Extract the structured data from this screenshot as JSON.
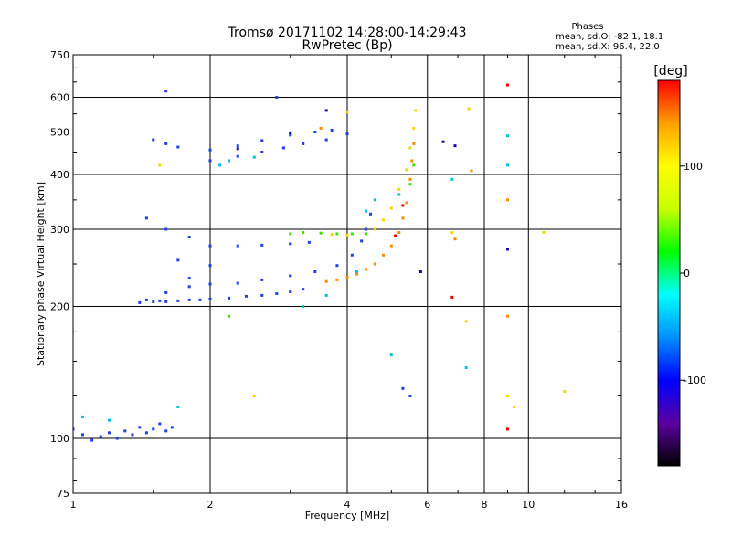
{
  "chart_data": {
    "type": "scatter",
    "title": "Tromsø 20171102 14:28:00-14:29:43",
    "subtitle": "RwPretec (Bp)",
    "xlabel": "Frequency [MHz]",
    "ylabel": "Stationary phase Virtual Height [km]",
    "x_scale": "log",
    "y_scale": "log",
    "xlim": [
      1,
      16
    ],
    "ylim": [
      75,
      750
    ],
    "x_ticks": [
      1,
      2,
      4,
      6,
      8,
      10,
      16
    ],
    "y_ticks": [
      75,
      100,
      200,
      300,
      400,
      500,
      600,
      750
    ],
    "grid": true,
    "annotation": {
      "heading": "Phases",
      "line1": "mean, sd,O: -82.1, 18.1",
      "line2": "mean, sd,X:  96.4, 22.0"
    },
    "colorbar": {
      "label": "[deg]",
      "range": [
        -180,
        180
      ],
      "ticks": [
        100,
        0,
        -100
      ],
      "tick_labels": [
        "100",
        "0",
        "-100"
      ],
      "stops": [
        "#000000",
        "#5a00a0",
        "#0000ff",
        "#0090ff",
        "#00ffff",
        "#00ff00",
        "#c8ff00",
        "#ffff00",
        "#ffa000",
        "#ff0000"
      ]
    },
    "series": [
      {
        "color": "#2040e0",
        "points": [
          [
            1.0,
            105
          ],
          [
            1.05,
            102
          ],
          [
            1.1,
            99
          ],
          [
            1.15,
            101
          ],
          [
            1.2,
            103
          ],
          [
            1.25,
            100
          ],
          [
            1.3,
            104
          ],
          [
            1.35,
            102
          ],
          [
            1.4,
            106
          ],
          [
            1.45,
            103
          ],
          [
            1.5,
            105
          ],
          [
            1.55,
            108
          ],
          [
            1.6,
            104
          ],
          [
            1.65,
            106
          ],
          [
            1.4,
            204
          ],
          [
            1.45,
            207
          ],
          [
            1.5,
            205
          ],
          [
            1.55,
            206
          ],
          [
            1.6,
            205
          ],
          [
            1.7,
            206
          ],
          [
            1.8,
            207
          ],
          [
            1.9,
            207
          ],
          [
            2.0,
            208
          ],
          [
            2.2,
            209
          ],
          [
            2.4,
            211
          ],
          [
            2.6,
            212
          ],
          [
            2.8,
            214
          ],
          [
            3.0,
            216
          ],
          [
            3.2,
            219
          ],
          [
            1.6,
            215
          ],
          [
            1.8,
            222
          ],
          [
            2.0,
            225
          ],
          [
            2.3,
            226
          ],
          [
            2.6,
            230
          ],
          [
            3.0,
            235
          ],
          [
            3.4,
            240
          ],
          [
            3.8,
            248
          ],
          [
            4.1,
            262
          ],
          [
            4.3,
            282
          ],
          [
            4.4,
            300
          ],
          [
            4.5,
            325
          ],
          [
            1.45,
            318
          ],
          [
            1.6,
            300
          ],
          [
            1.8,
            288
          ],
          [
            2.0,
            275
          ],
          [
            2.3,
            275
          ],
          [
            2.6,
            276
          ],
          [
            3.0,
            278
          ],
          [
            3.3,
            280
          ],
          [
            1.5,
            480
          ],
          [
            1.6,
            470
          ],
          [
            1.7,
            462
          ],
          [
            2.0,
            455
          ],
          [
            2.3,
            465
          ],
          [
            2.6,
            478
          ],
          [
            3.0,
            492
          ],
          [
            3.4,
            500
          ],
          [
            3.7,
            505
          ],
          [
            2.0,
            430
          ],
          [
            2.3,
            440
          ],
          [
            2.6,
            450
          ],
          [
            2.9,
            460
          ],
          [
            3.2,
            470
          ],
          [
            3.6,
            480
          ],
          [
            4.0,
            495
          ],
          [
            1.7,
            255
          ],
          [
            2.0,
            248
          ],
          [
            1.8,
            232
          ],
          [
            1.6,
            620
          ],
          [
            2.8,
            600
          ],
          [
            5.3,
            130
          ],
          [
            5.5,
            125
          ]
        ]
      },
      {
        "color": "#00c0e0",
        "points": [
          [
            1.05,
            112
          ],
          [
            1.2,
            110
          ],
          [
            1.7,
            118
          ],
          [
            2.1,
            420
          ],
          [
            2.2,
            430
          ],
          [
            2.5,
            438
          ],
          [
            3.2,
            200
          ],
          [
            3.6,
            212
          ],
          [
            4.2,
            240
          ],
          [
            4.4,
            330
          ],
          [
            4.6,
            350
          ],
          [
            5.0,
            155
          ],
          [
            5.2,
            360
          ],
          [
            6.8,
            390
          ],
          [
            7.3,
            145
          ],
          [
            9.0,
            420
          ],
          [
            9.0,
            490
          ]
        ]
      },
      {
        "color": "#40e000",
        "points": [
          [
            2.2,
            190
          ],
          [
            3.0,
            293
          ],
          [
            3.2,
            295
          ],
          [
            3.5,
            294
          ],
          [
            3.8,
            293
          ],
          [
            4.1,
            293
          ],
          [
            4.4,
            293
          ],
          [
            5.5,
            380
          ],
          [
            5.6,
            420
          ]
        ]
      },
      {
        "color": "#f0d800",
        "points": [
          [
            3.7,
            292
          ],
          [
            4.0,
            291
          ],
          [
            4.6,
            300
          ],
          [
            4.8,
            315
          ],
          [
            5.0,
            335
          ],
          [
            5.2,
            370
          ],
          [
            5.4,
            410
          ],
          [
            5.5,
            460
          ],
          [
            5.6,
            510
          ],
          [
            5.65,
            560
          ],
          [
            4.0,
            555
          ],
          [
            6.8,
            295
          ],
          [
            7.3,
            185
          ],
          [
            7.4,
            565
          ],
          [
            9.0,
            125
          ],
          [
            9.3,
            118
          ],
          [
            10.8,
            295
          ],
          [
            12.0,
            128
          ],
          [
            1.55,
            420
          ],
          [
            2.5,
            125
          ]
        ]
      },
      {
        "color": "#ff8c00",
        "points": [
          [
            3.6,
            228
          ],
          [
            3.8,
            230
          ],
          [
            4.0,
            233
          ],
          [
            4.2,
            237
          ],
          [
            4.4,
            243
          ],
          [
            4.6,
            250
          ],
          [
            4.8,
            262
          ],
          [
            5.0,
            275
          ],
          [
            5.2,
            295
          ],
          [
            5.3,
            318
          ],
          [
            5.4,
            345
          ],
          [
            5.5,
            390
          ],
          [
            5.55,
            430
          ],
          [
            5.6,
            470
          ],
          [
            3.5,
            510
          ],
          [
            6.9,
            285
          ],
          [
            7.5,
            408
          ],
          [
            9.0,
            190
          ],
          [
            9.0,
            350
          ]
        ]
      },
      {
        "color": "#e00000",
        "points": [
          [
            5.1,
            290
          ],
          [
            5.3,
            340
          ],
          [
            6.8,
            210
          ],
          [
            9.0,
            105
          ],
          [
            9.0,
            640
          ]
        ]
      },
      {
        "color": "#2000a0",
        "points": [
          [
            2.3,
            458
          ],
          [
            3.0,
            498
          ],
          [
            3.6,
            560
          ],
          [
            5.8,
            240
          ],
          [
            6.5,
            475
          ],
          [
            6.9,
            465
          ],
          [
            9.0,
            270
          ]
        ]
      }
    ]
  }
}
